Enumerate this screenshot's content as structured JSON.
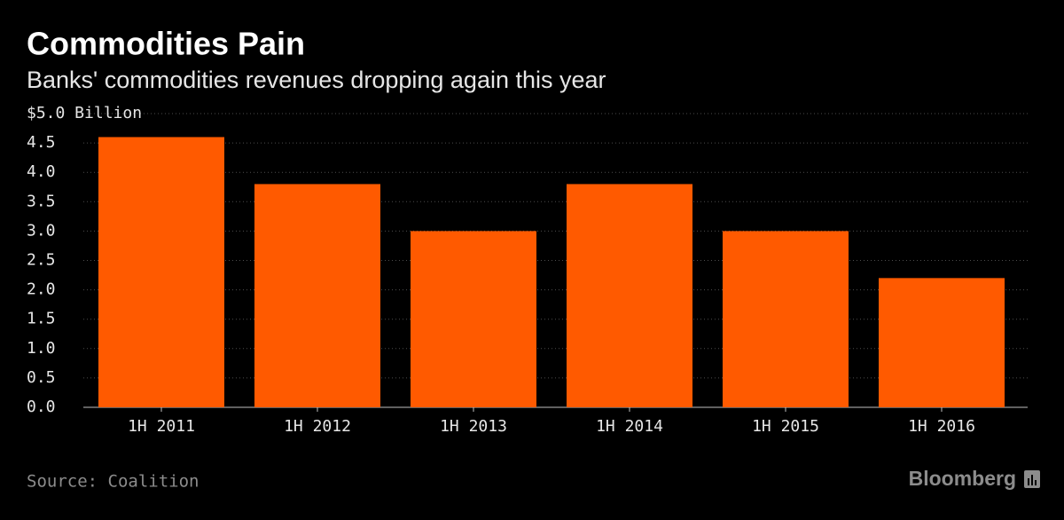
{
  "chart_data": {
    "type": "bar",
    "title": "Commodities Pain",
    "subtitle": "Banks' commodities revenues dropping again this year",
    "categories": [
      "1H 2011",
      "1H 2012",
      "1H 2013",
      "1H 2014",
      "1H 2015",
      "1H 2016"
    ],
    "values": [
      4.6,
      3.8,
      3.0,
      3.8,
      3.0,
      2.2
    ],
    "color": "#ff5a00",
    "ylim": [
      0,
      5
    ],
    "yticks": [
      {
        "value": 0,
        "label": "0.0"
      },
      0.5,
      {
        "value": 1,
        "label": "1.0"
      },
      1.5,
      {
        "value": 2,
        "label": "2.0"
      },
      2.5,
      {
        "value": 3,
        "label": "3.0"
      },
      3.5,
      {
        "value": 4,
        "label": "4.0"
      },
      4.5,
      {
        "value": 5,
        "label": "$5.0 Billion"
      }
    ],
    "grid": true,
    "source": "Source: Coalition",
    "brand": "Bloomberg"
  }
}
